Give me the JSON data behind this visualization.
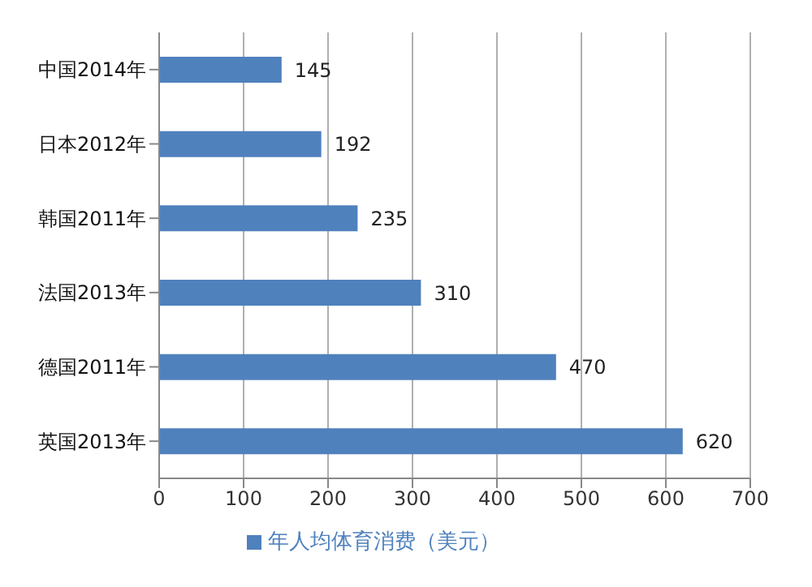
{
  "chart_data": {
    "type": "bar",
    "orientation": "horizontal",
    "categories": [
      "中国2014年",
      "日本2012年",
      "韩国2011年",
      "法国2013年",
      "德国2011年",
      "英国2013年"
    ],
    "series": [
      {
        "name": "年人均体育消费（美元）",
        "color": "#4f81bd",
        "values": [
          145,
          192,
          235,
          310,
          470,
          620
        ]
      }
    ],
    "xlim": [
      0,
      700
    ],
    "xticks": [
      0,
      100,
      200,
      300,
      400,
      500,
      600,
      700
    ],
    "grid": "x",
    "legend": "bottom",
    "data_labels": true
  }
}
